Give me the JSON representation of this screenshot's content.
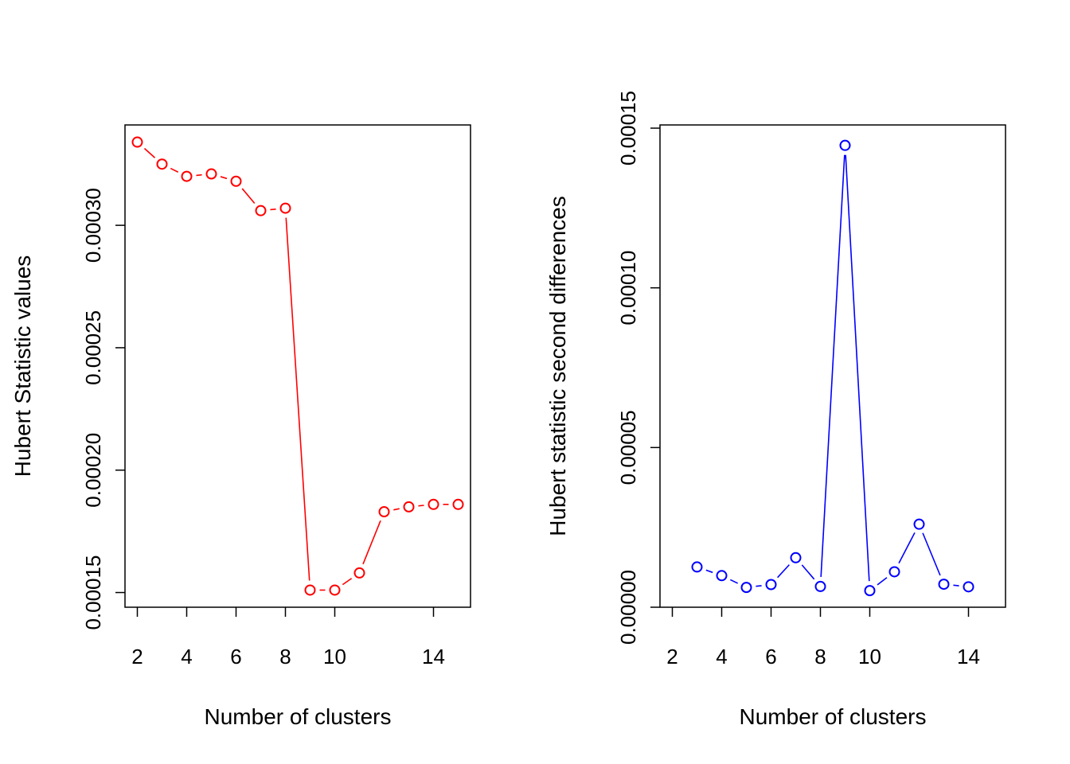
{
  "chart_data": [
    {
      "type": "line",
      "xlabel": "Number of clusters",
      "ylabel": "Hubert Statistic values",
      "color": "#ff0000",
      "xlim": [
        1.5,
        15.5
      ],
      "ylim": [
        0.000144,
        0.000341
      ],
      "xticks": [
        2,
        4,
        6,
        8,
        10,
        14
      ],
      "xtick_labels": [
        "2",
        "4",
        "6",
        "8",
        "10",
        "14"
      ],
      "yticks": [
        0.00015,
        0.0002,
        0.00025,
        0.0003
      ],
      "ytick_labels": [
        "0.00015",
        "0.00020",
        "0.00025",
        "0.00030"
      ],
      "series": [
        {
          "x": [
            2,
            3,
            4,
            5,
            6,
            7,
            8,
            9,
            10,
            11,
            12,
            13,
            14,
            15
          ],
          "values": [
            0.000334,
            0.000325,
            0.00032,
            0.000321,
            0.000318,
            0.000306,
            0.000307,
            0.000151,
            0.000151,
            0.000158,
            0.000183,
            0.000185,
            0.000186,
            0.000186
          ]
        }
      ]
    },
    {
      "type": "line",
      "xlabel": "Number of clusters",
      "ylabel": "Hubert statistic second differences",
      "color": "#0000ff",
      "xlim": [
        1.5,
        15.5
      ],
      "ylim": [
        0.0,
        0.000151
      ],
      "xticks": [
        2,
        4,
        6,
        8,
        10,
        14
      ],
      "xtick_labels": [
        "2",
        "4",
        "6",
        "8",
        "10",
        "14"
      ],
      "yticks": [
        0.0,
        5e-05,
        0.0001,
        0.00015
      ],
      "ytick_labels": [
        "0.00000",
        "0.00005",
        "0.00010",
        "0.00015"
      ],
      "series": [
        {
          "x": [
            3,
            4,
            5,
            6,
            7,
            8,
            9,
            10,
            11,
            12,
            13,
            14
          ],
          "values": [
            1.26e-05,
            9.9e-06,
            6.2e-06,
            7.1e-06,
            1.55e-05,
            6.5e-06,
            0.0001446,
            5.2e-06,
            1.11e-05,
            2.6e-05,
            7.2e-06,
            6.4e-06
          ]
        }
      ]
    }
  ]
}
